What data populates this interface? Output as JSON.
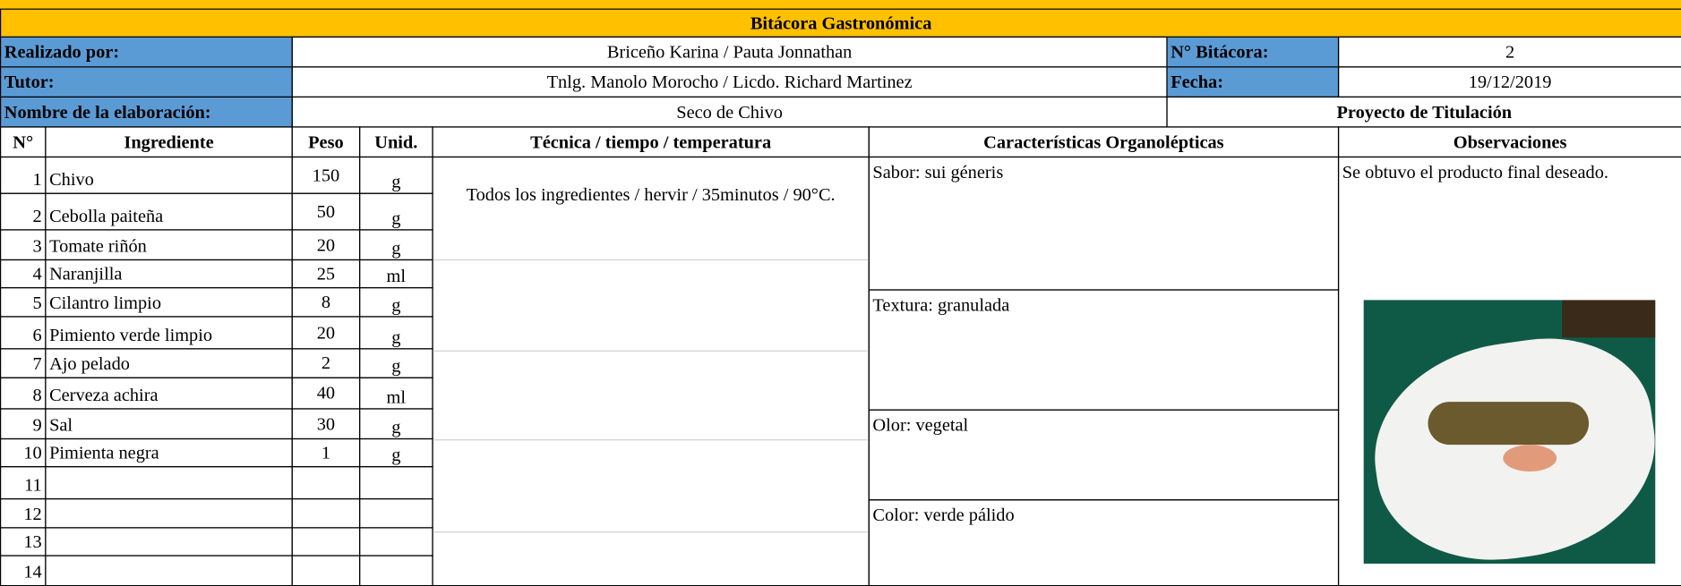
{
  "header": {
    "title": "Bitácora Gastronómica"
  },
  "info": {
    "realizado_label": "Realizado por:",
    "realizado": "Briceño Karina / Pauta Jonnathan",
    "bitacora_label": "N° Bitácora:",
    "bitacora": "2",
    "tutor_label": "Tutor:",
    "tutor": "Tnlg. Manolo Morocho / Licdo. Richard Martinez",
    "fecha_label": "Fecha:",
    "fecha": "19/12/2019",
    "nombre_label": "Nombre de la elaboración:",
    "nombre": "Seco de Chivo",
    "proyecto": "Proyecto de Titulación"
  },
  "table": {
    "columns": [
      "N°",
      "Ingrediente",
      "Peso",
      "Unid.",
      "Técnica / tiempo / temperatura",
      "Características Organolépticas",
      "Observaciones"
    ],
    "rows": [
      {
        "n": 1,
        "ingrediente": "Chivo",
        "peso": 150,
        "unidad": "g"
      },
      {
        "n": 2,
        "ingrediente": "Cebolla paiteña",
        "peso": 50,
        "unidad": "g"
      },
      {
        "n": 3,
        "ingrediente": "Tomate riñón",
        "peso": 20,
        "unidad": "g"
      },
      {
        "n": 4,
        "ingrediente": "Naranjilla",
        "peso": 25,
        "unidad": "ml"
      },
      {
        "n": 5,
        "ingrediente": "Cilantro limpio",
        "peso": 8,
        "unidad": "g"
      },
      {
        "n": 6,
        "ingrediente": "Pimiento verde limpio",
        "peso": 20,
        "unidad": "g"
      },
      {
        "n": 7,
        "ingrediente": "Ajo pelado",
        "peso": 2,
        "unidad": "g"
      },
      {
        "n": 8,
        "ingrediente": "Cerveza achira",
        "peso": 40,
        "unidad": "ml"
      },
      {
        "n": 9,
        "ingrediente": "Sal",
        "peso": 30,
        "unidad": "g"
      },
      {
        "n": 10,
        "ingrediente": "Pimienta negra",
        "peso": 1,
        "unidad": "g"
      },
      {
        "n": 11
      },
      {
        "n": 12
      },
      {
        "n": 13
      },
      {
        "n": 14
      }
    ],
    "tecnica": "Todos los ingredientes / hervir / 35minutos / 90°C.",
    "caracteristicas": [
      "Sabor: sui géneris",
      "Textura: granulada",
      "Olor: vegetal",
      "Color: verde pálido"
    ],
    "observaciones": "Se obtuvo el producto final deseado."
  }
}
